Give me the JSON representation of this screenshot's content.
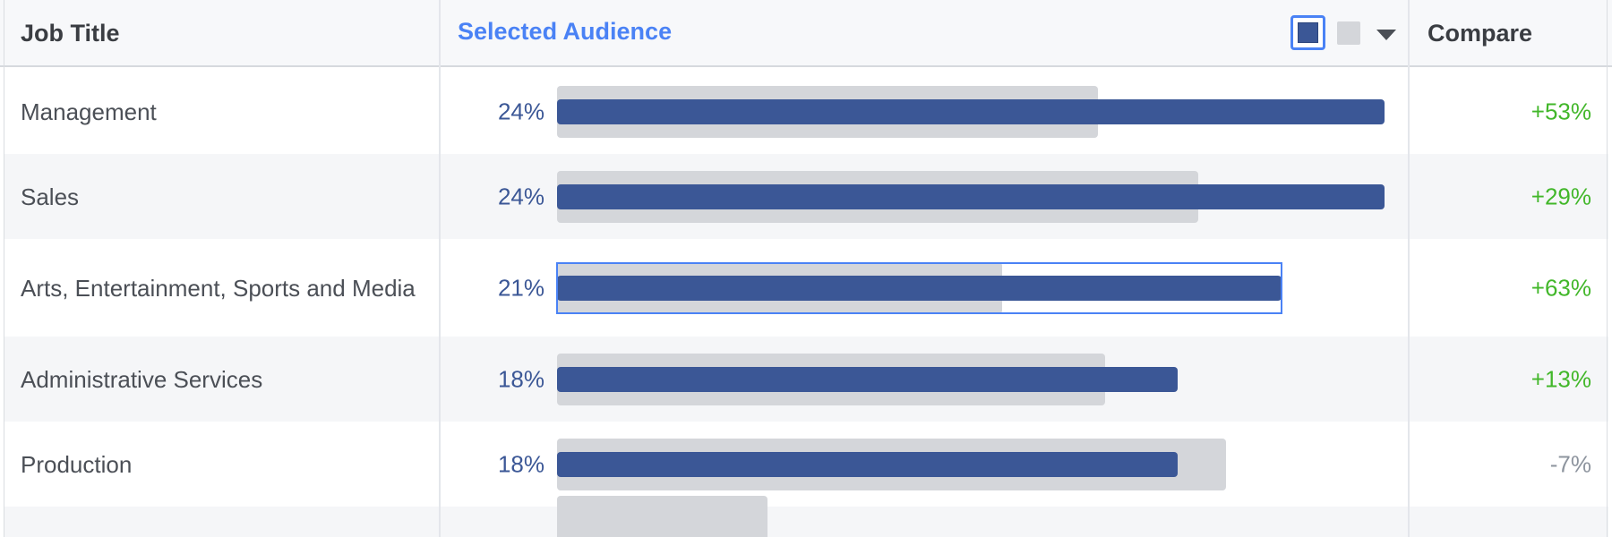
{
  "header": {
    "job_title": "Job Title",
    "selected_audience": "Selected Audience",
    "compare": "Compare",
    "legend_selected_icon": "selected-audience-swatch",
    "legend_compare_icon": "benchmark-swatch",
    "dropdown_icon": "caret-down-icon"
  },
  "colors": {
    "selected_bar": "#3b5796",
    "benchmark_bar": "#d4d6da",
    "link_blue": "#4a82f5",
    "positive": "#42b72a",
    "negative": "#8d949e"
  },
  "rows": [
    {
      "label": "Management",
      "pct": "24%",
      "compare": "+53%"
    },
    {
      "label": "Sales",
      "pct": "24%",
      "compare": "+29%"
    },
    {
      "label": "Arts, Entertainment, Sports and Media",
      "pct": "21%",
      "compare": "+63%"
    },
    {
      "label": "Administrative Services",
      "pct": "18%",
      "compare": "+13%"
    },
    {
      "label": "Production",
      "pct": "18%",
      "compare": "-7%"
    }
  ],
  "chart_data": {
    "type": "bar",
    "categories": [
      "Management",
      "Sales",
      "Arts, Entertainment, Sports and Media",
      "Administrative Services",
      "Production",
      ""
    ],
    "series": [
      {
        "values": [
          24,
          24,
          21,
          18,
          18,
          null
        ]
      },
      {
        "values": [
          15.7,
          18.6,
          12.9,
          15.9,
          19.4,
          6.1
        ]
      }
    ],
    "compare": [
      "+53%",
      "+29%",
      "+63%",
      "+13%",
      "-7%",
      ""
    ],
    "highlighted_category": "Arts, Entertainment, Sports and Media",
    "xlim": [
      0,
      24
    ]
  }
}
